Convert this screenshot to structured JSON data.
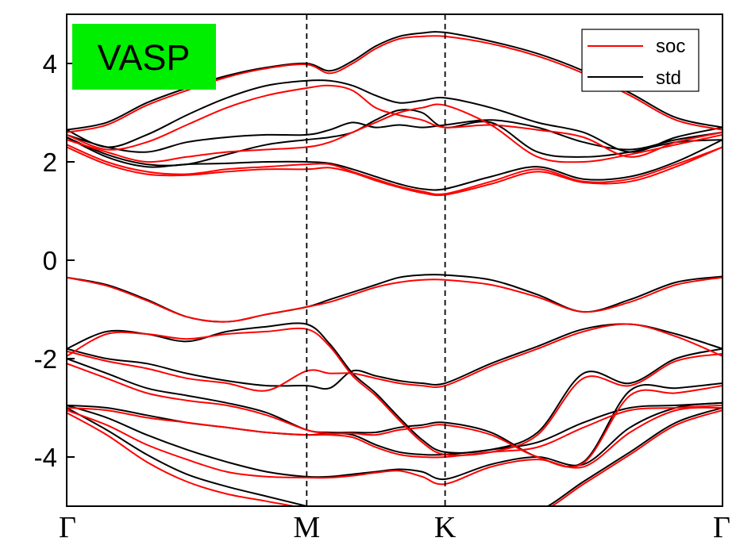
{
  "chart_data": {
    "type": "line",
    "title": "",
    "xlabel": "",
    "ylabel": "",
    "ylim": [
      -5,
      5
    ],
    "yticks": [
      -4,
      -2,
      0,
      2,
      4
    ],
    "ytick_labels": [
      "-4",
      "-2",
      "0",
      "2",
      "4"
    ],
    "x_range": [
      0,
      1
    ],
    "kpoints": [
      {
        "label": "Γ",
        "x": 0.0
      },
      {
        "label": "M",
        "x": 0.366
      },
      {
        "label": "K",
        "x": 0.577
      },
      {
        "label": "Γ",
        "x": 1.0
      }
    ],
    "divider_lines_at": [
      0.366,
      0.577
    ],
    "grid": false,
    "badge": {
      "text": "VASP",
      "color": "#00ee00"
    },
    "legend": {
      "placement": "top-right"
    },
    "x": [
      0.0,
      0.061,
      0.122,
      0.183,
      0.244,
      0.305,
      0.366,
      0.401,
      0.436,
      0.471,
      0.507,
      0.542,
      0.577,
      0.647,
      0.718,
      0.788,
      0.859,
      0.929,
      1.0
    ],
    "series": [
      {
        "name": "std",
        "color": "#000000",
        "bands": [
          [
            2.65,
            2.8,
            3.2,
            3.5,
            3.75,
            3.92,
            4.0,
            3.85,
            4.05,
            4.35,
            4.55,
            4.62,
            4.63,
            4.45,
            4.2,
            3.85,
            3.4,
            2.9,
            2.7
          ],
          [
            2.65,
            2.3,
            2.55,
            2.95,
            3.3,
            3.55,
            3.65,
            3.65,
            3.55,
            3.35,
            3.2,
            3.25,
            3.3,
            3.1,
            2.8,
            2.6,
            2.2,
            2.5,
            2.7
          ],
          [
            2.55,
            2.3,
            2.2,
            2.4,
            2.5,
            2.55,
            2.55,
            2.65,
            2.8,
            2.7,
            2.75,
            2.7,
            2.75,
            2.85,
            2.7,
            2.4,
            2.25,
            2.45,
            2.6
          ],
          [
            2.5,
            2.15,
            1.95,
            1.95,
            2.15,
            2.35,
            2.45,
            2.5,
            2.6,
            2.85,
            3.05,
            3.0,
            2.7,
            2.8,
            2.2,
            2.1,
            2.2,
            2.4,
            2.45
          ],
          [
            2.5,
            2.1,
            1.9,
            1.95,
            1.97,
            2.0,
            2.0,
            1.97,
            1.85,
            1.7,
            1.55,
            1.45,
            1.45,
            1.7,
            1.9,
            1.65,
            1.7,
            2.0,
            2.45
          ],
          [
            -0.35,
            -0.5,
            -0.8,
            -1.15,
            -1.25,
            -1.1,
            -0.95,
            -0.8,
            -0.65,
            -0.5,
            -0.35,
            -0.3,
            -0.3,
            -0.4,
            -0.7,
            -1.05,
            -0.8,
            -0.45,
            -0.33
          ],
          [
            -1.8,
            -1.45,
            -1.5,
            -1.65,
            -1.45,
            -1.35,
            -1.3,
            -1.7,
            -2.3,
            -2.7,
            -3.2,
            -3.65,
            -3.9,
            -3.85,
            -3.5,
            -2.3,
            -2.5,
            -2.0,
            -1.8
          ],
          [
            -1.8,
            -2.0,
            -2.1,
            -2.3,
            -2.45,
            -2.55,
            -2.55,
            -2.6,
            -2.25,
            -2.35,
            -2.45,
            -2.5,
            -2.5,
            -2.1,
            -1.75,
            -1.4,
            -1.3,
            -1.5,
            -1.8
          ],
          [
            -2.0,
            -2.3,
            -2.6,
            -2.75,
            -2.9,
            -3.1,
            -3.45,
            -3.5,
            -3.5,
            -3.5,
            -3.4,
            -3.35,
            -3.3,
            -3.5,
            -4.0,
            -4.1,
            -2.65,
            -2.6,
            -2.5
          ],
          [
            -2.95,
            -3.0,
            -3.15,
            -3.3,
            -3.4,
            -3.5,
            -3.55,
            -3.52,
            -3.55,
            -3.75,
            -3.9,
            -3.95,
            -3.95,
            -3.85,
            -3.7,
            -3.3,
            -3.0,
            -2.95,
            -2.9
          ],
          [
            -2.95,
            -3.2,
            -3.55,
            -3.85,
            -4.1,
            -4.3,
            -4.4,
            -4.4,
            -4.35,
            -4.3,
            -4.25,
            -4.3,
            -4.45,
            -4.15,
            -4.0,
            -4.15,
            -3.4,
            -3.0,
            -2.9
          ],
          [
            -3.0,
            -3.45,
            -3.95,
            -4.35,
            -4.6,
            -4.8,
            -5.0,
            -5.1,
            -5.2,
            -5.25,
            -5.25,
            -5.2,
            -5.1,
            -5.2,
            -5.1,
            -4.5,
            -3.9,
            -3.3,
            -3.0
          ]
        ]
      },
      {
        "name": "soc",
        "color": "#ff0000",
        "bands": [
          [
            2.6,
            2.75,
            3.15,
            3.45,
            3.72,
            3.9,
            3.98,
            3.8,
            4.0,
            4.3,
            4.5,
            4.55,
            4.55,
            4.4,
            4.15,
            3.8,
            3.35,
            2.85,
            2.65
          ],
          [
            2.55,
            2.25,
            2.4,
            2.75,
            3.1,
            3.35,
            3.5,
            3.55,
            3.45,
            3.1,
            2.95,
            2.85,
            2.7,
            2.75,
            2.65,
            2.5,
            2.1,
            2.4,
            2.6
          ],
          [
            2.45,
            2.2,
            2.0,
            2.1,
            2.2,
            2.25,
            2.3,
            2.4,
            2.6,
            2.8,
            3.0,
            3.1,
            3.15,
            2.75,
            2.1,
            2.0,
            2.15,
            2.35,
            2.55
          ],
          [
            2.35,
            2.0,
            1.8,
            1.75,
            1.85,
            1.9,
            1.95,
            1.95,
            1.8,
            1.65,
            1.5,
            1.4,
            1.35,
            1.6,
            1.85,
            1.6,
            1.65,
            1.95,
            2.3
          ],
          [
            2.3,
            1.95,
            1.75,
            1.73,
            1.8,
            1.85,
            1.85,
            1.88,
            1.78,
            1.62,
            1.48,
            1.37,
            1.33,
            1.55,
            1.8,
            1.58,
            1.6,
            1.9,
            2.3
          ],
          [
            -0.35,
            -0.52,
            -0.82,
            -1.15,
            -1.25,
            -1.1,
            -0.95,
            -0.85,
            -0.7,
            -0.55,
            -0.45,
            -0.4,
            -0.4,
            -0.5,
            -0.75,
            -1.05,
            -0.85,
            -0.5,
            -0.35
          ],
          [
            -1.95,
            -1.5,
            -1.5,
            -1.6,
            -1.5,
            -1.45,
            -1.4,
            -1.75,
            -2.35,
            -2.75,
            -3.25,
            -3.7,
            -3.95,
            -3.9,
            -3.55,
            -2.4,
            -2.55,
            -2.05,
            -1.9
          ],
          [
            -1.85,
            -2.05,
            -2.2,
            -2.4,
            -2.5,
            -2.65,
            -2.25,
            -2.3,
            -2.3,
            -2.4,
            -2.5,
            -2.55,
            -2.55,
            -2.15,
            -1.8,
            -1.45,
            -1.3,
            -1.55,
            -1.95
          ],
          [
            -2.1,
            -2.4,
            -2.7,
            -2.85,
            -2.95,
            -3.15,
            -3.45,
            -3.52,
            -3.52,
            -3.55,
            -3.45,
            -3.4,
            -3.35,
            -3.55,
            -4.0,
            -4.12,
            -2.75,
            -2.7,
            -2.55
          ],
          [
            -3.0,
            -3.05,
            -3.2,
            -3.3,
            -3.4,
            -3.5,
            -3.55,
            -3.55,
            -3.6,
            -3.8,
            -3.95,
            -4.0,
            -4.0,
            -3.9,
            -3.8,
            -3.4,
            -3.05,
            -3.0,
            -2.95
          ],
          [
            -3.05,
            -3.35,
            -3.75,
            -4.05,
            -4.3,
            -4.4,
            -4.42,
            -4.42,
            -4.38,
            -4.32,
            -4.28,
            -4.4,
            -4.55,
            -4.2,
            -4.05,
            -4.2,
            -3.5,
            -3.05,
            -3.0
          ],
          [
            -3.1,
            -3.55,
            -4.1,
            -4.5,
            -4.75,
            -4.9,
            -5.05,
            -5.15,
            -5.25,
            -5.3,
            -5.3,
            -5.2,
            -5.0,
            -5.25,
            -5.15,
            -4.55,
            -3.95,
            -3.35,
            -3.05
          ]
        ]
      }
    ]
  }
}
